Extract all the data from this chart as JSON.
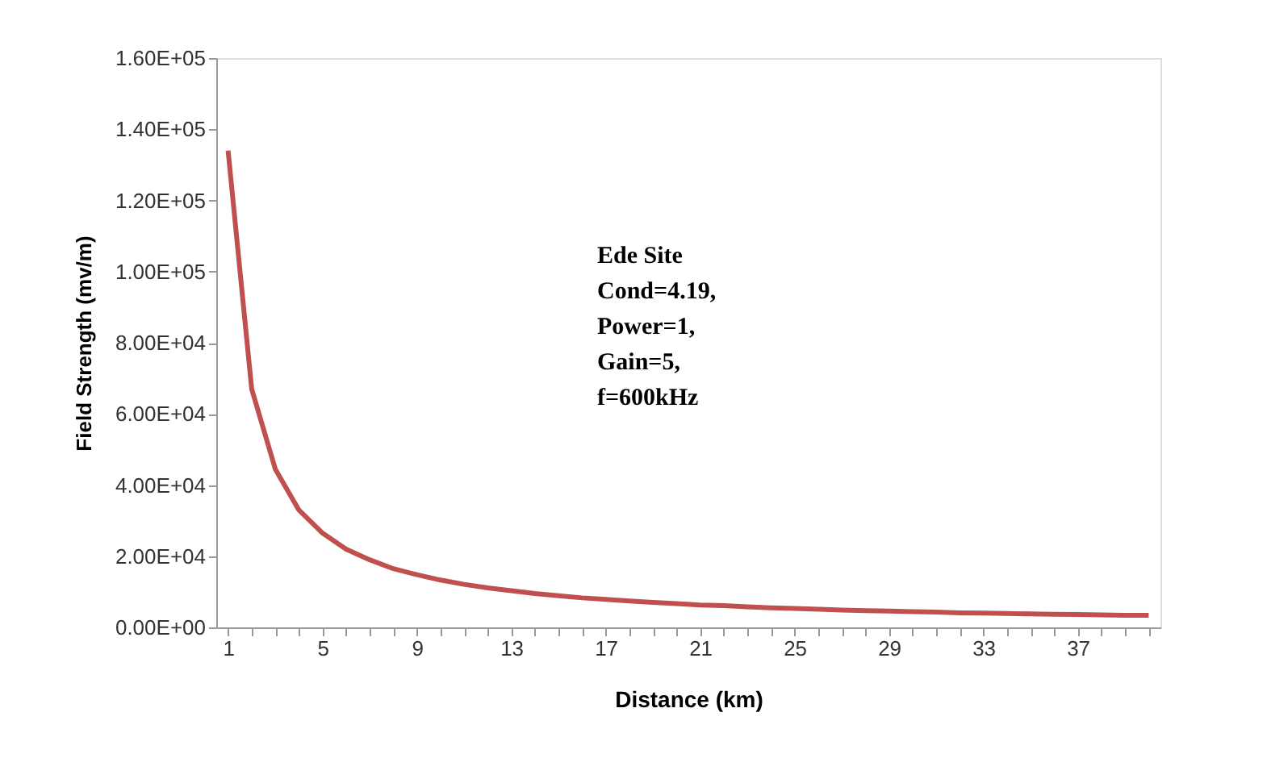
{
  "chart_data": {
    "type": "line",
    "xlabel": "Distance (km)",
    "ylabel": "Field Strength (mv/m)",
    "categories": [
      "1",
      null,
      null,
      null,
      "5",
      null,
      null,
      null,
      "9",
      null,
      null,
      null,
      "13",
      null,
      null,
      null,
      "17",
      null,
      null,
      null,
      "21",
      null,
      null,
      null,
      "25",
      null,
      null,
      null,
      "29",
      null,
      null,
      null,
      "33",
      null,
      null,
      null,
      "37",
      null,
      null,
      null
    ],
    "series": [
      {
        "color": "#c0504d",
        "values": [
          134000,
          67000,
          44500,
          33000,
          26500,
          22000,
          19000,
          16500,
          14800,
          13300,
          12100,
          11100,
          10300,
          9500,
          8900,
          8300,
          7900,
          7400,
          7000,
          6700,
          6300,
          6100,
          5800,
          5500,
          5300,
          5100,
          4900,
          4700,
          4600,
          4400,
          4300,
          4100,
          4000,
          3900,
          3800,
          3700,
          3600,
          3500,
          3400,
          3400
        ]
      }
    ],
    "ylim": [
      0,
      160000
    ],
    "yticks": [
      {
        "value": 0,
        "label": "0.00E+00"
      },
      {
        "value": 20000,
        "label": "2.00E+04"
      },
      {
        "value": 40000,
        "label": "4.00E+04"
      },
      {
        "value": 60000,
        "label": "6.00E+04"
      },
      {
        "value": 80000,
        "label": "8.00E+04"
      },
      {
        "value": 100000,
        "label": "1.00E+05"
      },
      {
        "value": 120000,
        "label": "1.20E+05"
      },
      {
        "value": 140000,
        "label": "1.40E+05"
      },
      {
        "value": 160000,
        "label": "1.60E+05"
      }
    ],
    "annotations": [
      "Ede Site",
      "Cond=4.19,",
      "Power=1,",
      "Gain=5,",
      "f=600kHz"
    ],
    "grid": false,
    "marker": "none",
    "line_style": "solid"
  }
}
